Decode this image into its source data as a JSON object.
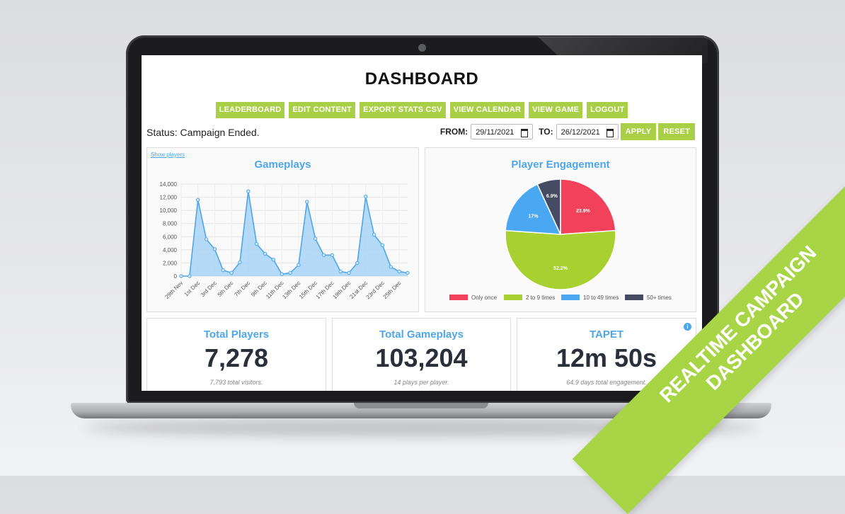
{
  "dashboard": {
    "title": "DASHBOARD",
    "nav": [
      "LEADERBOARD",
      "EDIT CONTENT",
      "EXPORT STATS CSV",
      "VIEW CALENDAR",
      "VIEW GAME",
      "LOGOUT"
    ],
    "status": "Status: Campaign Ended.",
    "from_label": "FROM:",
    "from_value": "29/11/2021",
    "to_label": "TO:",
    "to_value": "26/12/2021",
    "apply_label": "APPLY",
    "reset_label": "RESET"
  },
  "gameplays_panel": {
    "show_players": "Show players",
    "title": "Gameplays"
  },
  "engagement_panel": {
    "title": "Player Engagement"
  },
  "stats": [
    {
      "title": "Total Players",
      "value": "7,278",
      "note": "7,793 total visitors."
    },
    {
      "title": "Total Gameplays",
      "value": "103,204",
      "note": "14 plays per player."
    },
    {
      "title": "TAPET",
      "value": "12m 50s",
      "note": "64.9 days total engagement."
    }
  ],
  "banner": {
    "line1": "REALTIME CAMPAIGN",
    "line2": "DASHBOARD"
  },
  "colors": {
    "accent_green": "#a8cf45",
    "accent_blue": "#4ea6e9",
    "pie_red": "#f2425b",
    "pie_green": "#a8d030",
    "pie_blue": "#4aa8f2",
    "pie_navy": "#464b64"
  },
  "chart_data": [
    {
      "type": "area",
      "title": "Gameplays",
      "x": [
        "29th Nov",
        "30th Nov",
        "1st Dec",
        "2nd Dec",
        "3rd Dec",
        "4th Dec",
        "5th Dec",
        "6th Dec",
        "7th Dec",
        "8th Dec",
        "9th Dec",
        "10th Dec",
        "11th Dec",
        "12th Dec",
        "13th Dec",
        "14th Dec",
        "15th Dec",
        "16th Dec",
        "17th Dec",
        "18th Dec",
        "19th Dec",
        "20th Dec",
        "21st Dec",
        "22nd Dec",
        "23rd Dec",
        "24th Dec",
        "25th Dec",
        "26th Dec"
      ],
      "x_tick_labels": [
        "29th Nov",
        "1st Dec",
        "3rd Dec",
        "5th Dec",
        "7th Dec",
        "9th Dec",
        "11th Dec",
        "13th Dec",
        "15th Dec",
        "17th Dec",
        "19th Dec",
        "21st Dec",
        "23rd Dec",
        "25th Dec"
      ],
      "values": [
        0,
        0,
        11600,
        5600,
        4100,
        900,
        500,
        2100,
        12900,
        4900,
        3400,
        2500,
        300,
        500,
        1700,
        11300,
        5700,
        3200,
        3200,
        700,
        500,
        2000,
        12100,
        6300,
        4700,
        1400,
        700,
        500
      ],
      "ylim": [
        0,
        14000
      ],
      "yticks": [
        "0",
        "2,000",
        "4,000",
        "6,000",
        "8,000",
        "10,000",
        "12,000",
        "14,000"
      ],
      "grid": true
    },
    {
      "type": "pie",
      "title": "Player Engagement",
      "categories": [
        "Only once",
        "2 to 9 times",
        "10 to 49 times",
        "50+ times"
      ],
      "values": [
        23.9,
        52.2,
        17,
        6.9
      ],
      "labels": [
        "23.9%",
        "52.2%",
        "17%",
        "6.9%"
      ],
      "legend": "bottom"
    }
  ]
}
